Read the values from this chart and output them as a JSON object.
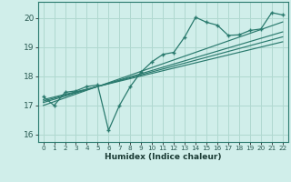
{
  "title": "",
  "xlabel": "Humidex (Indice chaleur)",
  "ylabel": "",
  "xlim": [
    -0.5,
    22.5
  ],
  "ylim": [
    15.75,
    20.55
  ],
  "xticks": [
    0,
    1,
    2,
    3,
    4,
    5,
    6,
    7,
    8,
    9,
    10,
    11,
    12,
    13,
    14,
    15,
    16,
    17,
    18,
    19,
    20,
    21,
    22
  ],
  "yticks": [
    16,
    17,
    18,
    19,
    20
  ],
  "background_color": "#d0eeea",
  "grid_color": "#b0d8d0",
  "line_color": "#2a7a6e",
  "x_data": [
    0,
    1,
    2,
    3,
    4,
    5,
    6,
    7,
    8,
    9,
    10,
    11,
    12,
    13,
    14,
    15,
    16,
    17,
    18,
    19,
    20,
    21,
    22
  ],
  "y_main": [
    17.3,
    17.0,
    17.45,
    17.5,
    17.65,
    17.7,
    16.15,
    17.0,
    17.65,
    18.15,
    18.5,
    18.75,
    18.82,
    19.35,
    20.02,
    19.85,
    19.75,
    19.4,
    19.42,
    19.57,
    19.62,
    20.18,
    20.1
  ],
  "reg_lines": [
    [
      17.1,
      17.21,
      17.32,
      17.43,
      17.54,
      17.65,
      17.76,
      17.87,
      17.98,
      18.09,
      18.2,
      18.31,
      18.42,
      18.53,
      18.64,
      18.75,
      18.86,
      18.97,
      19.08,
      19.19,
      19.3,
      19.41,
      19.52
    ],
    [
      17.15,
      17.25,
      17.35,
      17.45,
      17.55,
      17.65,
      17.75,
      17.85,
      17.95,
      18.05,
      18.15,
      18.25,
      18.35,
      18.45,
      18.55,
      18.65,
      18.75,
      18.85,
      18.95,
      19.05,
      19.15,
      19.25,
      19.35
    ],
    [
      17.2,
      17.29,
      17.38,
      17.47,
      17.56,
      17.65,
      17.74,
      17.83,
      17.92,
      18.01,
      18.1,
      18.19,
      18.28,
      18.37,
      18.46,
      18.55,
      18.64,
      18.73,
      18.82,
      18.91,
      19.0,
      19.09,
      19.18
    ],
    [
      17.0,
      17.13,
      17.26,
      17.39,
      17.52,
      17.65,
      17.78,
      17.91,
      18.04,
      18.17,
      18.3,
      18.43,
      18.56,
      18.69,
      18.82,
      18.95,
      19.08,
      19.21,
      19.34,
      19.47,
      19.6,
      19.73,
      19.86
    ]
  ]
}
